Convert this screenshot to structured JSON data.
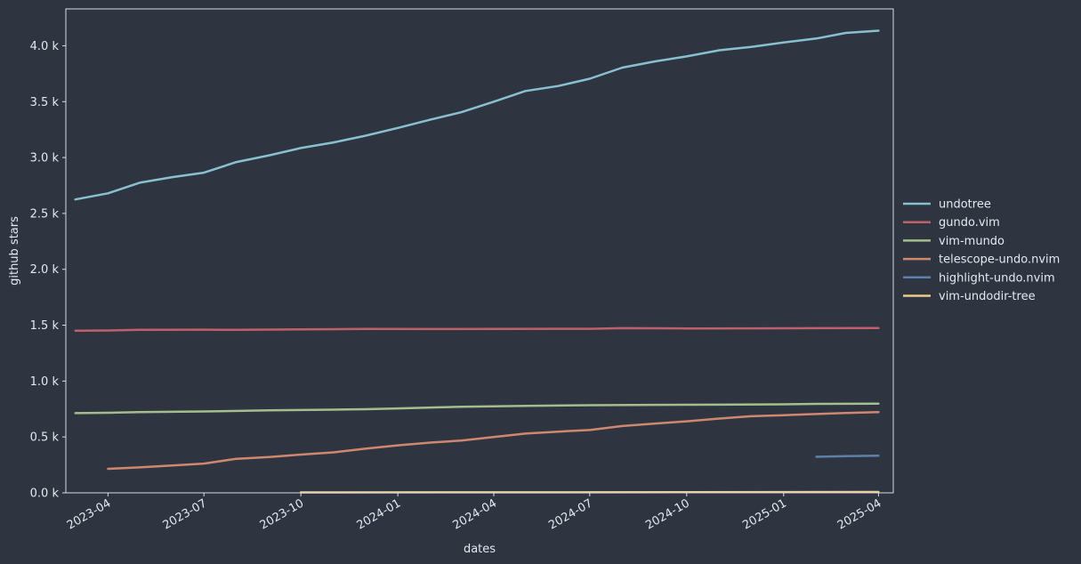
{
  "colors": {
    "background": "#2e3440",
    "axis": "#d8dee9",
    "text": "#e5e9f0"
  },
  "chart_data": {
    "type": "line",
    "xlabel": "dates",
    "ylabel": "github stars",
    "xlim": [
      "2023-02-20",
      "2025-04-15"
    ],
    "ylim": [
      0,
      4330
    ],
    "grid": false,
    "legend_position": "right",
    "x_ticks": [
      {
        "date": "2023-04-01",
        "label": "2023-04"
      },
      {
        "date": "2023-07-01",
        "label": "2023-07"
      },
      {
        "date": "2023-10-01",
        "label": "2023-10"
      },
      {
        "date": "2024-01-01",
        "label": "2024-01"
      },
      {
        "date": "2024-04-01",
        "label": "2024-04"
      },
      {
        "date": "2024-07-01",
        "label": "2024-07"
      },
      {
        "date": "2024-10-01",
        "label": "2024-10"
      },
      {
        "date": "2025-01-01",
        "label": "2025-01"
      },
      {
        "date": "2025-04-01",
        "label": "2025-04"
      }
    ],
    "y_ticks": [
      {
        "value": 0,
        "label": "0.0 k"
      },
      {
        "value": 500,
        "label": "0.5 k"
      },
      {
        "value": 1000,
        "label": "1.0 k"
      },
      {
        "value": 1500,
        "label": "1.5 k"
      },
      {
        "value": 2000,
        "label": "2.0 k"
      },
      {
        "value": 2500,
        "label": "2.5 k"
      },
      {
        "value": 3000,
        "label": "3.0 k"
      },
      {
        "value": 3500,
        "label": "3.5 k"
      },
      {
        "value": 4000,
        "label": "4.0 k"
      }
    ],
    "series": [
      {
        "name": "undotree",
        "color": "#88c0d0",
        "x": [
          "2023-03-01",
          "2023-04-01",
          "2023-05-01",
          "2023-06-01",
          "2023-07-01",
          "2023-08-01",
          "2023-09-01",
          "2023-10-01",
          "2023-11-01",
          "2023-12-01",
          "2024-01-01",
          "2024-02-01",
          "2024-03-01",
          "2024-04-01",
          "2024-05-01",
          "2024-06-01",
          "2024-07-01",
          "2024-08-01",
          "2024-09-01",
          "2024-10-01",
          "2024-11-01",
          "2024-12-01",
          "2025-01-01",
          "2025-02-01",
          "2025-03-01",
          "2025-04-01"
        ],
        "y": [
          2625,
          2680,
          2775,
          2825,
          2865,
          2960,
          3020,
          3085,
          3135,
          3195,
          3265,
          3340,
          3405,
          3500,
          3595,
          3640,
          3705,
          3805,
          3860,
          3905,
          3960,
          3990,
          4030,
          4065,
          4115,
          4135
        ]
      },
      {
        "name": "gundo.vim",
        "color": "#bf616a",
        "x": [
          "2023-03-01",
          "2023-04-01",
          "2023-05-01",
          "2023-07-01",
          "2023-08-01",
          "2023-10-01",
          "2023-12-01",
          "2024-02-01",
          "2024-04-01",
          "2024-06-01",
          "2024-07-01",
          "2024-08-01",
          "2024-10-01",
          "2024-12-01",
          "2025-02-01",
          "2025-04-01"
        ],
        "y": [
          1450,
          1453,
          1458,
          1460,
          1458,
          1462,
          1466,
          1465,
          1467,
          1468,
          1468,
          1473,
          1471,
          1472,
          1473,
          1474
        ]
      },
      {
        "name": "vim-mundo",
        "color": "#a3be8c",
        "x": [
          "2023-03-01",
          "2023-04-01",
          "2023-05-01",
          "2023-07-01",
          "2023-09-01",
          "2023-11-01",
          "2023-12-01",
          "2024-01-01",
          "2024-02-01",
          "2024-03-01",
          "2024-05-01",
          "2024-07-01",
          "2024-09-01",
          "2024-11-01",
          "2025-01-01",
          "2025-02-01",
          "2025-04-01"
        ],
        "y": [
          713,
          716,
          723,
          728,
          738,
          744,
          748,
          755,
          763,
          770,
          778,
          784,
          787,
          789,
          792,
          796,
          798
        ]
      },
      {
        "name": "telescope-undo.nvim",
        "color": "#d08770",
        "x": [
          "2023-04-01",
          "2023-05-01",
          "2023-06-01",
          "2023-07-01",
          "2023-08-01",
          "2023-09-01",
          "2023-10-01",
          "2023-11-01",
          "2023-12-01",
          "2024-01-01",
          "2024-02-01",
          "2024-03-01",
          "2024-04-01",
          "2024-05-01",
          "2024-06-01",
          "2024-07-01",
          "2024-08-01",
          "2024-09-01",
          "2024-10-01",
          "2024-11-01",
          "2024-12-01",
          "2025-01-01",
          "2025-02-01",
          "2025-03-01",
          "2025-04-01"
        ],
        "y": [
          215,
          228,
          245,
          262,
          305,
          320,
          342,
          362,
          395,
          425,
          450,
          468,
          500,
          530,
          548,
          562,
          598,
          620,
          640,
          665,
          685,
          695,
          705,
          715,
          722
        ]
      },
      {
        "name": "highlight-undo.nvim",
        "color": "#5e81ac",
        "x": [
          "2025-02-01",
          "2025-03-01",
          "2025-04-01"
        ],
        "y": [
          322,
          328,
          332
        ]
      },
      {
        "name": "vim-undodir-tree",
        "color": "#ebcb8b",
        "x": [
          "2023-10-01",
          "2024-04-01",
          "2024-10-01",
          "2025-04-01"
        ],
        "y": [
          4,
          5,
          6,
          8
        ]
      }
    ]
  }
}
